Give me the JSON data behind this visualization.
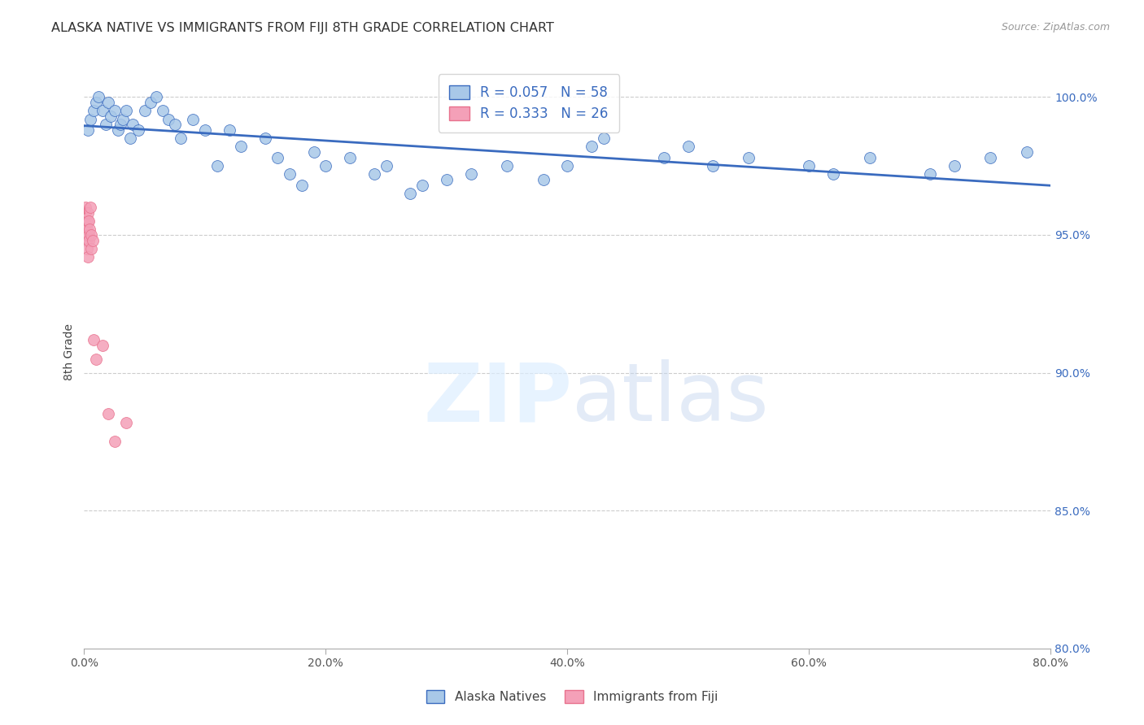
{
  "title": "ALASKA NATIVE VS IMMIGRANTS FROM FIJI 8TH GRADE CORRELATION CHART",
  "source": "Source: ZipAtlas.com",
  "ylabel": "8th Grade",
  "x_tick_values": [
    0.0,
    20.0,
    40.0,
    60.0,
    80.0
  ],
  "y_tick_values": [
    80.0,
    85.0,
    90.0,
    95.0,
    100.0
  ],
  "y_tick_labels": [
    "80.0%",
    "85.0%",
    "90.0%",
    "95.0%",
    "100.0%"
  ],
  "xlim": [
    0.0,
    80.0
  ],
  "ylim": [
    80.0,
    101.5
  ],
  "background_color": "#ffffff",
  "blue_color": "#a8c8e8",
  "pink_color": "#f4a0b8",
  "blue_line_color": "#3a6bbf",
  "pink_line_color": "#e8718d",
  "R_blue": 0.057,
  "N_blue": 58,
  "R_pink": 0.333,
  "N_pink": 26,
  "legend_label_blue": "Alaska Natives",
  "legend_label_pink": "Immigrants from Fiji",
  "blue_dots_x": [
    0.3,
    0.5,
    0.8,
    1.0,
    1.2,
    1.5,
    1.8,
    2.0,
    2.2,
    2.5,
    2.8,
    3.0,
    3.2,
    3.5,
    3.8,
    4.0,
    4.5,
    5.0,
    5.5,
    6.0,
    6.5,
    7.0,
    7.5,
    8.0,
    9.0,
    10.0,
    11.0,
    12.0,
    13.0,
    15.0,
    16.0,
    17.0,
    18.0,
    19.0,
    20.0,
    22.0,
    24.0,
    25.0,
    27.0,
    28.0,
    30.0,
    32.0,
    35.0,
    38.0,
    40.0,
    42.0,
    43.0,
    48.0,
    50.0,
    52.0,
    55.0,
    60.0,
    62.0,
    65.0,
    70.0,
    72.0,
    75.0,
    78.0
  ],
  "blue_dots_y": [
    98.8,
    99.2,
    99.5,
    99.8,
    100.0,
    99.5,
    99.0,
    99.8,
    99.3,
    99.5,
    98.8,
    99.0,
    99.2,
    99.5,
    98.5,
    99.0,
    98.8,
    99.5,
    99.8,
    100.0,
    99.5,
    99.2,
    99.0,
    98.5,
    99.2,
    98.8,
    97.5,
    98.8,
    98.2,
    98.5,
    97.8,
    97.2,
    96.8,
    98.0,
    97.5,
    97.8,
    97.2,
    97.5,
    96.5,
    96.8,
    97.0,
    97.2,
    97.5,
    97.0,
    97.5,
    98.2,
    98.5,
    97.8,
    98.2,
    97.5,
    97.8,
    97.5,
    97.2,
    97.8,
    97.2,
    97.5,
    97.8,
    98.0
  ],
  "pink_dots_x": [
    0.05,
    0.08,
    0.1,
    0.12,
    0.15,
    0.18,
    0.2,
    0.22,
    0.25,
    0.28,
    0.3,
    0.32,
    0.35,
    0.38,
    0.4,
    0.45,
    0.5,
    0.55,
    0.6,
    0.7,
    0.8,
    1.0,
    1.5,
    2.0,
    2.5,
    3.5
  ],
  "pink_dots_y": [
    95.5,
    95.8,
    96.0,
    95.2,
    95.5,
    94.8,
    95.0,
    94.5,
    95.2,
    95.5,
    95.8,
    94.2,
    95.0,
    94.8,
    95.5,
    95.2,
    96.0,
    94.5,
    95.0,
    94.8,
    91.2,
    90.5,
    91.0,
    88.5,
    87.5,
    88.2
  ]
}
